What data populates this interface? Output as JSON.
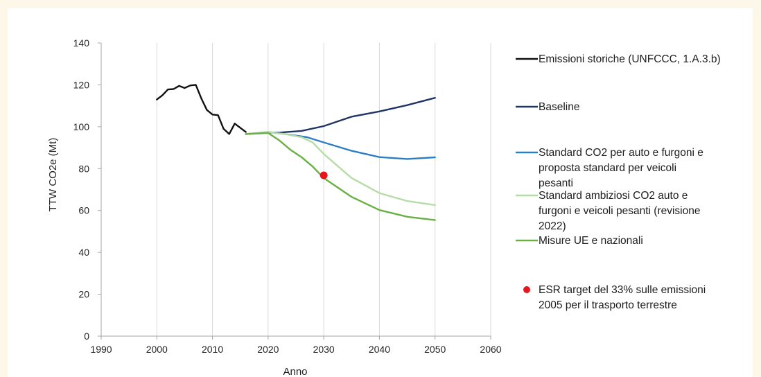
{
  "chart_data": {
    "type": "line",
    "title": "",
    "xlabel": "Anno",
    "ylabel": "TTW CO2e (Mt)",
    "xlim": [
      1990,
      2060
    ],
    "ylim": [
      0,
      140
    ],
    "x_ticks": [
      1990,
      2000,
      2010,
      2020,
      2030,
      2040,
      2050,
      2060
    ],
    "y_ticks": [
      0,
      20,
      40,
      60,
      80,
      100,
      120,
      140
    ],
    "grid": "vertical",
    "legend_position": "right",
    "series": [
      {
        "name": "Emissioni storiche (UNFCCC, 1.A.3.b)",
        "color": "#111111",
        "points": [
          [
            2000,
            113
          ],
          [
            2001,
            115
          ],
          [
            2002,
            117.8
          ],
          [
            2003,
            118
          ],
          [
            2004,
            119.5
          ],
          [
            2005,
            118.5
          ],
          [
            2006,
            119.7
          ],
          [
            2007,
            120
          ],
          [
            2008,
            113.5
          ],
          [
            2009,
            108
          ],
          [
            2010,
            105.8
          ],
          [
            2011,
            105.5
          ],
          [
            2012,
            99
          ],
          [
            2013,
            96.5
          ],
          [
            2014,
            101.5
          ],
          [
            2015,
            99.5
          ],
          [
            2016,
            97.5
          ]
        ]
      },
      {
        "name": "Baseline",
        "color": "#1f3566",
        "points": [
          [
            2016,
            96.5
          ],
          [
            2020,
            97.2
          ],
          [
            2022,
            97.2
          ],
          [
            2026,
            98
          ],
          [
            2030,
            100.3
          ],
          [
            2035,
            104.8
          ],
          [
            2040,
            107.3
          ],
          [
            2045,
            110.3
          ],
          [
            2050,
            113.8
          ]
        ]
      },
      {
        "name": "Standard CO2 per auto e furgoni e proposta standard per veicoli pesanti",
        "color": "#2e7fc1",
        "points": [
          [
            2016,
            96.5
          ],
          [
            2020,
            97.5
          ],
          [
            2023,
            96.5
          ],
          [
            2027,
            95
          ],
          [
            2030,
            92.5
          ],
          [
            2035,
            88.5
          ],
          [
            2040,
            85.5
          ],
          [
            2045,
            84.6
          ],
          [
            2050,
            85.4
          ]
        ]
      },
      {
        "name": "Standard ambiziosi CO2 auto e furgoni e veicoli pesanti (revisione 2022)",
        "color": "#b6dca6",
        "points": [
          [
            2016,
            96.5
          ],
          [
            2020,
            97.5
          ],
          [
            2023,
            96.5
          ],
          [
            2026,
            95
          ],
          [
            2028,
            92.5
          ],
          [
            2030,
            87
          ],
          [
            2035,
            75.5
          ],
          [
            2040,
            68.3
          ],
          [
            2045,
            64.5
          ],
          [
            2050,
            62.6
          ]
        ]
      },
      {
        "name": "Misure UE e nazionali",
        "color": "#6aaf44",
        "points": [
          [
            2016,
            96.5
          ],
          [
            2020,
            97
          ],
          [
            2022,
            93.5
          ],
          [
            2024,
            89
          ],
          [
            2026,
            85.5
          ],
          [
            2028,
            81
          ],
          [
            2030,
            75.5
          ],
          [
            2035,
            66.5
          ],
          [
            2040,
            60.2
          ],
          [
            2045,
            57
          ],
          [
            2050,
            55.4
          ]
        ]
      }
    ],
    "markers": [
      {
        "name": "ESR target del 33% sulle emissioni 2005 per il trasporto terrestre",
        "color": "#e8151b",
        "x": 2030,
        "y": 76.8
      }
    ]
  },
  "legend": [
    {
      "lines": [
        "Emissioni storiche (UNFCCC, 1.A.3.b)"
      ],
      "color": "#111111",
      "kind": "line"
    },
    {
      "lines": [
        "Baseline"
      ],
      "color": "#1f3566",
      "kind": "line"
    },
    {
      "lines": [
        "Standard CO2 per auto e furgoni e",
        "proposta standard per veicoli",
        "pesanti"
      ],
      "color": "#2e7fc1",
      "kind": "line"
    },
    {
      "lines": [
        "Standard ambiziosi CO2 auto e",
        "furgoni e veicoli pesanti (revisione",
        "2022)"
      ],
      "color": "#b6dca6",
      "kind": "line"
    },
    {
      "lines": [
        "Misure UE e nazionali"
      ],
      "color": "#6aaf44",
      "kind": "line"
    },
    {
      "lines": [
        "ESR target del 33% sulle emissioni",
        "2005 per il trasporto terrestre"
      ],
      "color": "#e8151b",
      "kind": "dot"
    }
  ]
}
